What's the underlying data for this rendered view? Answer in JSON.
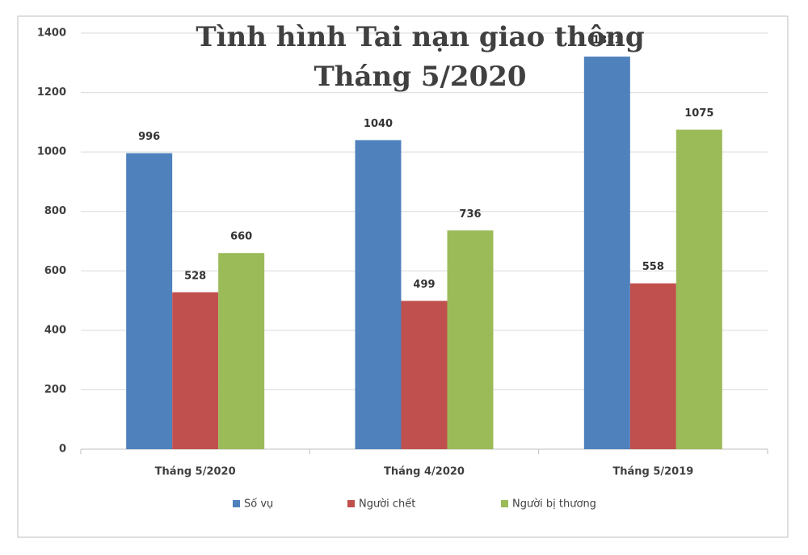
{
  "chart_data": {
    "type": "bar",
    "title": [
      "Tình hình Tai nạn giao thông",
      "Tháng 5/2020"
    ],
    "categories": [
      "Tháng 5/2020",
      "Tháng 4/2020",
      "Tháng 5/2019"
    ],
    "series": [
      {
        "name": "Số vụ",
        "color": "#4f81bd",
        "values": [
          996,
          1040,
          1321
        ]
      },
      {
        "name": "Người chết",
        "color": "#c0504d",
        "values": [
          528,
          499,
          558
        ]
      },
      {
        "name": "Người bị thương",
        "color": "#9bbb59",
        "values": [
          660,
          736,
          1075
        ]
      }
    ],
    "ylim": [
      0,
      1400
    ],
    "yticks": [
      0,
      200,
      400,
      600,
      800,
      1000,
      1200,
      1400
    ],
    "grid": true,
    "legend": "bottom"
  }
}
